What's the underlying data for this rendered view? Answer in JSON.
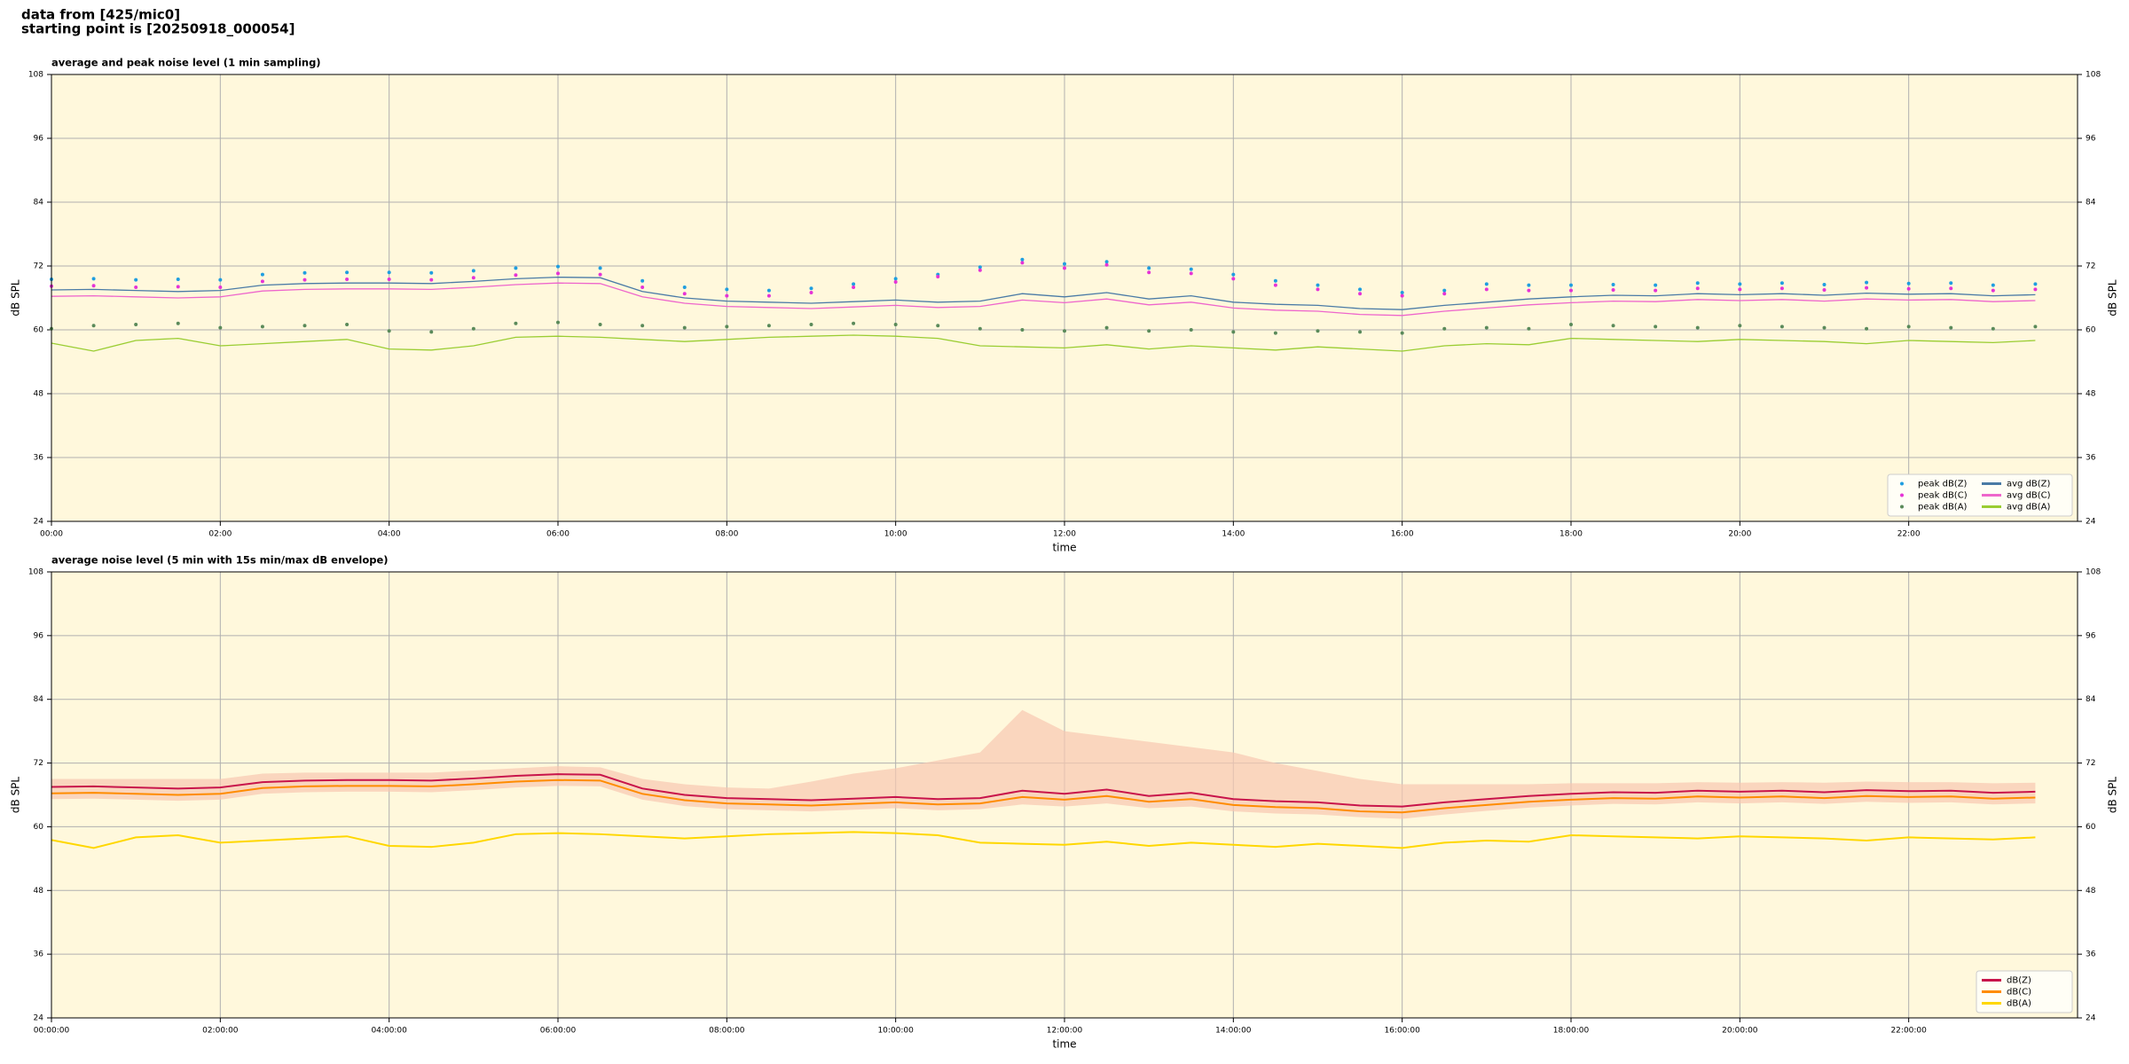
{
  "header": {
    "lines": [
      "data from [425/mic0]",
      "starting point is [20250918_000054]"
    ]
  },
  "chart_data": [
    {
      "type": "line",
      "title": "average and peak noise level (1 min sampling)",
      "xlabel": "time",
      "ylabel": "dB SPL",
      "facecolor": "#fff8dc",
      "grid": true,
      "mirror_y": true,
      "legend": "lower right",
      "legend_ncol": 2,
      "xlim": [
        0,
        24
      ],
      "ylim": [
        24,
        108
      ],
      "xticks": [
        {
          "value": 0,
          "label": "00:00"
        },
        {
          "value": 2,
          "label": "02:00"
        },
        {
          "value": 4,
          "label": "04:00"
        },
        {
          "value": 6,
          "label": "06:00"
        },
        {
          "value": 8,
          "label": "08:00"
        },
        {
          "value": 10,
          "label": "10:00"
        },
        {
          "value": 12,
          "label": "12:00"
        },
        {
          "value": 14,
          "label": "14:00"
        },
        {
          "value": 16,
          "label": "16:00"
        },
        {
          "value": 18,
          "label": "18:00"
        },
        {
          "value": 20,
          "label": "20:00"
        },
        {
          "value": 22,
          "label": "22:00"
        }
      ],
      "yticks": [
        24,
        36,
        48,
        60,
        72,
        84,
        96,
        108
      ],
      "x": [
        0,
        0.5,
        1,
        1.5,
        2,
        2.5,
        3,
        3.5,
        4,
        4.5,
        5,
        5.5,
        6,
        6.5,
        7,
        7.5,
        8,
        8.5,
        9,
        9.5,
        10,
        10.5,
        11,
        11.5,
        12,
        12.5,
        13,
        13.5,
        14,
        14.5,
        15,
        15.5,
        16,
        16.5,
        17,
        17.5,
        18,
        18.5,
        19,
        19.5,
        20,
        20.5,
        21,
        21.5,
        22,
        22.5,
        23,
        23.5
      ],
      "series": [
        {
          "name": "peak dB(Z)",
          "style": "points",
          "color": "#1f9ee0",
          "values": [
            69.5,
            69.6,
            69.4,
            69.5,
            69.4,
            70.4,
            70.7,
            70.8,
            70.8,
            70.7,
            71.1,
            71.6,
            71.9,
            71.6,
            69.2,
            68.0,
            67.6,
            67.4,
            67.8,
            68.6,
            69.6,
            70.4,
            71.8,
            73.2,
            72.4,
            72.8,
            71.6,
            71.4,
            70.4,
            69.2,
            68.4,
            67.6,
            67.0,
            67.4,
            68.6,
            68.4,
            68.4,
            68.5,
            68.4,
            68.8,
            68.6,
            68.8,
            68.5,
            68.9,
            68.7,
            68.8,
            68.4,
            68.6
          ]
        },
        {
          "name": "peak dB(C)",
          "style": "points",
          "color": "#e633d6",
          "values": [
            68.2,
            68.3,
            68.0,
            68.1,
            68.0,
            69.1,
            69.4,
            69.5,
            69.5,
            69.4,
            69.8,
            70.3,
            70.6,
            70.4,
            68.0,
            66.8,
            66.4,
            66.4,
            67.0,
            68.0,
            69.0,
            70.0,
            71.2,
            72.6,
            71.6,
            72.2,
            70.8,
            70.6,
            69.6,
            68.4,
            67.6,
            66.8,
            66.4,
            66.8,
            67.6,
            67.4,
            67.4,
            67.5,
            67.4,
            67.8,
            67.6,
            67.8,
            67.5,
            67.9,
            67.7,
            67.8,
            67.4,
            67.6
          ]
        },
        {
          "name": "peak dB(A)",
          "style": "points",
          "color": "#5a8a5a",
          "values": [
            60.2,
            60.8,
            61.0,
            61.2,
            60.4,
            60.6,
            60.8,
            61.0,
            59.8,
            59.6,
            60.2,
            61.2,
            61.4,
            61.0,
            60.8,
            60.4,
            60.6,
            60.8,
            61.0,
            61.2,
            61.0,
            60.8,
            60.2,
            60.0,
            59.8,
            60.4,
            59.8,
            60.0,
            59.6,
            59.4,
            59.8,
            59.6,
            59.4,
            60.2,
            60.4,
            60.2,
            61.0,
            60.8,
            60.6,
            60.4,
            60.8,
            60.6,
            60.4,
            60.2,
            60.6,
            60.4,
            60.2,
            60.6
          ]
        },
        {
          "name": "avg dB(Z)",
          "style": "line",
          "color": "#4a7ba6",
          "values": [
            67.5,
            67.6,
            67.4,
            67.2,
            67.4,
            68.4,
            68.7,
            68.8,
            68.8,
            68.7,
            69.1,
            69.6,
            69.9,
            69.8,
            67.2,
            66.0,
            65.4,
            65.2,
            65.0,
            65.3,
            65.6,
            65.2,
            65.4,
            66.8,
            66.2,
            67.0,
            65.8,
            66.4,
            65.2,
            64.8,
            64.6,
            64.0,
            63.8,
            64.6,
            65.2,
            65.8,
            66.2,
            66.5,
            66.4,
            66.8,
            66.6,
            66.8,
            66.5,
            66.9,
            66.7,
            66.8,
            66.4,
            66.6
          ]
        },
        {
          "name": "avg dB(C)",
          "style": "line",
          "color": "#ee66cc",
          "values": [
            66.3,
            66.4,
            66.2,
            66.0,
            66.2,
            67.3,
            67.6,
            67.7,
            67.7,
            67.6,
            68.0,
            68.5,
            68.8,
            68.7,
            66.2,
            65.0,
            64.4,
            64.2,
            64.0,
            64.3,
            64.6,
            64.2,
            64.4,
            65.6,
            65.1,
            65.8,
            64.7,
            65.2,
            64.1,
            63.7,
            63.5,
            62.9,
            62.7,
            63.5,
            64.1,
            64.7,
            65.1,
            65.4,
            65.3,
            65.7,
            65.5,
            65.7,
            65.4,
            65.8,
            65.6,
            65.7,
            65.3,
            65.5
          ]
        },
        {
          "name": "avg dB(A)",
          "style": "line",
          "color": "#9acd32",
          "values": [
            57.5,
            56.0,
            58.0,
            58.4,
            57.0,
            57.4,
            57.8,
            58.2,
            56.4,
            56.2,
            57.0,
            58.6,
            58.8,
            58.6,
            58.2,
            57.8,
            58.2,
            58.6,
            58.8,
            59.0,
            58.8,
            58.4,
            57.0,
            56.8,
            56.6,
            57.2,
            56.4,
            57.0,
            56.6,
            56.2,
            56.8,
            56.4,
            56.0,
            57.0,
            57.4,
            57.2,
            58.4,
            58.2,
            58.0,
            57.8,
            58.2,
            58.0,
            57.8,
            57.4,
            58.0,
            57.8,
            57.6,
            58.0
          ]
        }
      ]
    },
    {
      "type": "line",
      "title": "average noise level (5 min with 15s min/max dB envelope)",
      "xlabel": "time",
      "ylabel": "dB SPL",
      "facecolor": "#fff8dc",
      "grid": true,
      "mirror_y": true,
      "legend": "lower right",
      "legend_ncol": 1,
      "xlim": [
        0,
        24
      ],
      "ylim": [
        24,
        108
      ],
      "xticks": [
        {
          "value": 0,
          "label": "00:00:00"
        },
        {
          "value": 2,
          "label": "02:00:00"
        },
        {
          "value": 4,
          "label": "04:00:00"
        },
        {
          "value": 6,
          "label": "06:00:00"
        },
        {
          "value": 8,
          "label": "08:00:00"
        },
        {
          "value": 10,
          "label": "10:00:00"
        },
        {
          "value": 12,
          "label": "12:00:00"
        },
        {
          "value": 14,
          "label": "14:00:00"
        },
        {
          "value": 16,
          "label": "16:00:00"
        },
        {
          "value": 18,
          "label": "18:00:00"
        },
        {
          "value": 20,
          "label": "20:00:00"
        },
        {
          "value": 22,
          "label": "22:00:00"
        }
      ],
      "yticks": [
        24,
        36,
        48,
        60,
        72,
        84,
        96,
        108
      ],
      "x": [
        0,
        0.5,
        1,
        1.5,
        2,
        2.5,
        3,
        3.5,
        4,
        4.5,
        5,
        5.5,
        6,
        6.5,
        7,
        7.5,
        8,
        8.5,
        9,
        9.5,
        10,
        10.5,
        11,
        11.5,
        12,
        12.5,
        13,
        13.5,
        14,
        14.5,
        15,
        15.5,
        16,
        16.5,
        17,
        17.5,
        18,
        18.5,
        19,
        19.5,
        20,
        20.5,
        21,
        21.5,
        22,
        22.5,
        23,
        23.5
      ],
      "envelope": {
        "color": "#f8c8b0",
        "high": [
          69,
          69,
          69,
          69,
          69,
          70,
          70.2,
          70.2,
          70.2,
          70.2,
          70.6,
          71,
          71.4,
          71.2,
          69,
          68,
          67.4,
          67.2,
          68.5,
          70,
          71,
          72.5,
          74,
          82,
          78,
          77,
          76,
          75,
          74,
          72,
          70.5,
          69,
          68,
          68,
          68,
          68,
          68.2,
          68.2,
          68.2,
          68.4,
          68.3,
          68.4,
          68.3,
          68.5,
          68.4,
          68.4,
          68.2,
          68.3
        ],
        "low": [
          65.2,
          65.3,
          65.1,
          64.9,
          65.1,
          66.2,
          66.5,
          66.6,
          66.6,
          66.5,
          66.9,
          67.4,
          67.7,
          67.6,
          65.1,
          63.9,
          63.3,
          63.1,
          62.9,
          63.2,
          63.5,
          63.1,
          63.3,
          64.2,
          63.8,
          64.4,
          63.5,
          63.8,
          62.9,
          62.5,
          62.3,
          61.8,
          61.5,
          62.3,
          63.0,
          63.6,
          64.0,
          64.3,
          64.2,
          64.6,
          64.4,
          64.6,
          64.3,
          64.7,
          64.5,
          64.6,
          64.2,
          64.4
        ]
      },
      "series": [
        {
          "name": "dB(Z)",
          "style": "line",
          "color": "#c8144b",
          "values": [
            67.5,
            67.6,
            67.4,
            67.2,
            67.4,
            68.4,
            68.7,
            68.8,
            68.8,
            68.7,
            69.1,
            69.6,
            69.9,
            69.8,
            67.2,
            66.0,
            65.4,
            65.2,
            65.0,
            65.3,
            65.6,
            65.2,
            65.4,
            66.8,
            66.2,
            67.0,
            65.8,
            66.4,
            65.2,
            64.8,
            64.6,
            64.0,
            63.8,
            64.6,
            65.2,
            65.8,
            66.2,
            66.5,
            66.4,
            66.8,
            66.6,
            66.8,
            66.5,
            66.9,
            66.7,
            66.8,
            66.4,
            66.6
          ]
        },
        {
          "name": "dB(C)",
          "style": "line",
          "color": "#ff8c00",
          "values": [
            66.3,
            66.4,
            66.2,
            66.0,
            66.2,
            67.3,
            67.6,
            67.7,
            67.7,
            67.6,
            68.0,
            68.5,
            68.8,
            68.7,
            66.2,
            65.0,
            64.4,
            64.2,
            64.0,
            64.3,
            64.6,
            64.2,
            64.4,
            65.6,
            65.1,
            65.8,
            64.7,
            65.2,
            64.1,
            63.7,
            63.5,
            62.9,
            62.7,
            63.5,
            64.1,
            64.7,
            65.1,
            65.4,
            65.3,
            65.7,
            65.5,
            65.7,
            65.4,
            65.8,
            65.6,
            65.7,
            65.3,
            65.5
          ]
        },
        {
          "name": "dB(A)",
          "style": "line",
          "color": "#ffd700",
          "values": [
            57.5,
            56.0,
            58.0,
            58.4,
            57.0,
            57.4,
            57.8,
            58.2,
            56.4,
            56.2,
            57.0,
            58.6,
            58.8,
            58.6,
            58.2,
            57.8,
            58.2,
            58.6,
            58.8,
            59.0,
            58.8,
            58.4,
            57.0,
            56.8,
            56.6,
            57.2,
            56.4,
            57.0,
            56.6,
            56.2,
            56.8,
            56.4,
            56.0,
            57.0,
            57.4,
            57.2,
            58.4,
            58.2,
            58.0,
            57.8,
            58.2,
            58.0,
            57.8,
            57.4,
            58.0,
            57.8,
            57.6,
            58.0
          ]
        }
      ]
    }
  ]
}
